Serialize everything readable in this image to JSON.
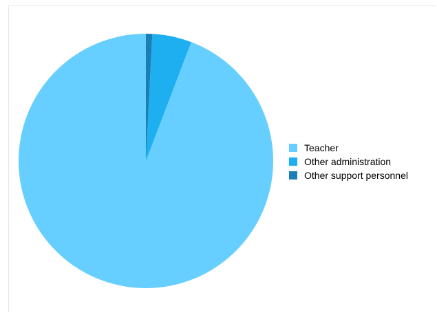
{
  "chart_data": {
    "type": "pie",
    "title": "",
    "start_angle_deg": 0,
    "direction": "counterclockwise",
    "slices": [
      {
        "label": "Teacher",
        "value": 94.2,
        "color": "#66cfff"
      },
      {
        "label": "Other administration",
        "value": 5.0,
        "color": "#1eaff0"
      },
      {
        "label": "Other support personnel",
        "value": 0.8,
        "color": "#1a7fb5"
      }
    ],
    "legend": {
      "position": "right"
    }
  }
}
